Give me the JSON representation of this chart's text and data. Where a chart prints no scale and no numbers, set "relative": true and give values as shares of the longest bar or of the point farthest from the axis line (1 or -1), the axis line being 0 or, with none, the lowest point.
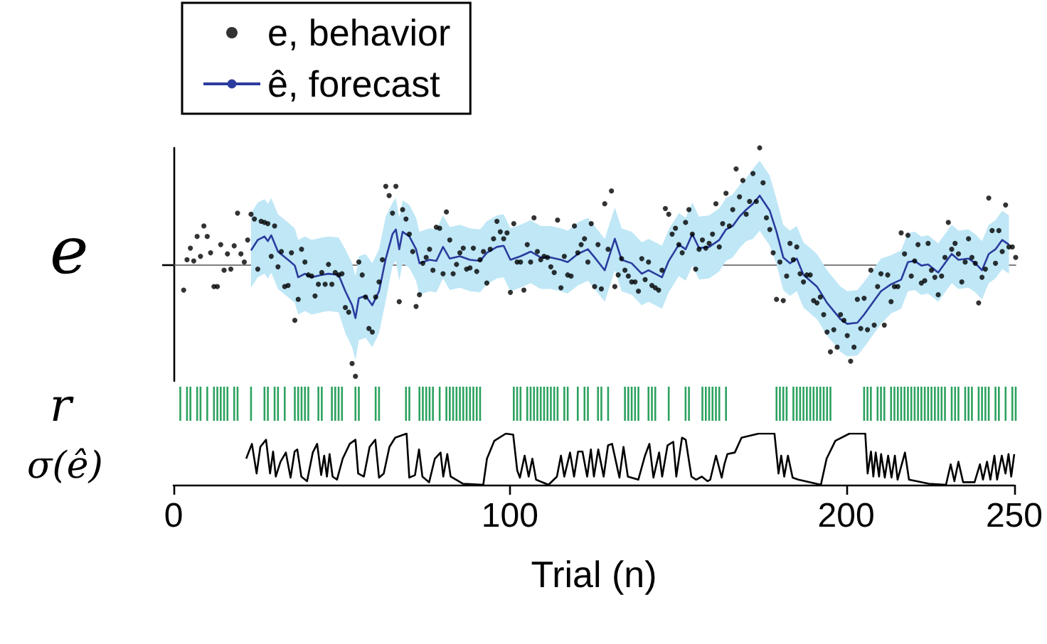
{
  "chart_data": [
    {
      "type": "line",
      "ylabel": "e",
      "relative": true,
      "xlim": [
        0,
        250
      ],
      "xticks": [
        0,
        100,
        200,
        250
      ],
      "tick_labels": false,
      "legend": "top left",
      "series": [
        {
          "type": "scatter",
          "name": "e, behavior",
          "color": "#000000",
          "marker": "circle",
          "x": [
            3,
            4,
            5,
            6,
            7,
            8,
            9,
            10,
            11,
            12,
            13,
            14,
            15,
            16,
            17,
            18,
            19,
            20,
            21,
            22,
            23,
            24,
            25,
            26,
            27,
            28,
            29,
            30,
            31,
            32,
            33,
            34,
            35,
            36,
            37,
            38,
            39,
            40,
            41,
            42,
            43,
            44,
            45,
            46,
            47,
            48,
            49,
            50,
            51,
            52,
            53,
            54,
            55,
            56,
            57,
            58,
            59,
            60,
            61,
            62,
            63,
            64,
            65,
            66,
            67,
            68,
            69,
            70,
            71,
            72,
            73,
            74,
            75,
            76,
            77,
            78,
            79,
            80,
            81,
            82,
            83,
            84,
            85,
            86,
            87,
            88,
            89,
            90,
            91,
            92,
            93,
            94,
            95,
            96,
            97,
            98,
            99,
            100,
            101,
            102,
            103,
            104,
            105,
            106,
            107,
            108,
            109,
            110,
            111,
            112,
            113,
            114,
            115,
            116,
            117,
            118,
            119,
            120,
            121,
            122,
            123,
            124,
            125,
            126,
            127,
            128,
            129,
            130,
            131,
            132,
            133,
            134,
            135,
            136,
            137,
            138,
            139,
            140,
            141,
            142,
            143,
            144,
            145,
            146,
            147,
            148,
            149,
            150,
            151,
            152,
            153,
            154,
            155,
            156,
            157,
            158,
            159,
            160,
            161,
            162,
            163,
            164,
            165,
            166,
            167,
            168,
            169,
            170,
            171,
            172,
            173,
            174,
            175,
            176,
            177,
            178,
            179,
            180,
            181,
            182,
            183,
            184,
            185,
            186,
            187,
            188,
            189,
            190,
            191,
            192,
            193,
            194,
            195,
            196,
            197,
            198,
            199,
            200,
            201,
            202,
            203,
            204,
            205,
            206,
            207,
            208,
            209,
            210,
            211,
            212,
            213,
            214,
            215,
            216,
            217,
            218,
            219,
            220,
            221,
            222,
            223,
            224,
            225,
            226,
            227,
            228,
            229,
            230,
            231,
            232,
            233,
            234,
            235,
            236,
            237,
            238,
            239,
            240,
            241,
            242,
            243,
            244,
            245,
            246,
            247,
            248,
            249,
            250
          ],
          "values": [
            -0.22,
            0.04,
            0.14,
            0.03,
            0.24,
            0.07,
            0.33,
            0.24,
            0.1,
            -0.19,
            -0.19,
            0.17,
            -0.05,
            0.09,
            -0.04,
            0.16,
            0.44,
            0.09,
            0.02,
            0.21,
            0.43,
            0.39,
            -0.04,
            0.37,
            0.36,
            0.35,
            0.07,
            0.33,
            -0.02,
            0.11,
            -0.19,
            -0.18,
            0.1,
            -0.48,
            -0.3,
            0.13,
            0.02,
            -0.09,
            -0.1,
            -0.27,
            -0.17,
            -0.07,
            -0.17,
            0.0,
            -0.17,
            -0.07,
            -0.09,
            -0.08,
            -0.37,
            -0.41,
            -0.85,
            -0.96,
            0.02,
            -0.09,
            -0.28,
            -0.55,
            -0.58,
            -0.28,
            -0.15,
            0.04,
            0.67,
            0.59,
            0.44,
            0.67,
            -0.32,
            0.47,
            0.39,
            0.26,
            0.11,
            -0.36,
            -0.26,
            0.01,
            0.06,
            0.13,
            -0.05,
            0.32,
            0.31,
            -0.08,
            0.45,
            0.21,
            -0.08,
            0.0,
            0.1,
            0.14,
            -0.04,
            -0.03,
            0.14,
            -0.06,
            0.04,
            0.11,
            -0.16,
            0.13,
            0.22,
            0.37,
            0.28,
            0.22,
            0.27,
            -0.24,
            0.35,
            0.02,
            0.02,
            -0.22,
            0.17,
            0.02,
            0.4,
            0.11,
            0.04,
            0.07,
            0.06,
            -0.02,
            -0.07,
            0.38,
            -0.2,
            0.07,
            -0.09,
            -0.1,
            0.33,
            0.1,
            0.17,
            0.22,
            0.02,
            0.35,
            -0.19,
            0.17,
            -0.21,
            0.52,
            0.13,
            0.63,
            -0.19,
            -0.09,
            0.05,
            -0.05,
            -0.1,
            -0.15,
            -0.15,
            -0.23,
            0.05,
            -0.13,
            0.02,
            -0.18,
            -0.2,
            -0.22,
            -0.05,
            0.48,
            0.43,
            0.26,
            0.31,
            0.17,
            0.1,
            0.36,
            0.47,
            0.26,
            -0.04,
            0.13,
            0.21,
            0.14,
            0.18,
            0.26,
            0.52,
            0.15,
            0.35,
            0.61,
            0.33,
            0.47,
            0.82,
            0.58,
            0.72,
            0.43,
            0.54,
            0.78,
            0.54,
            1.0,
            0.7,
            0.4,
            0.3,
            0.1,
            -0.3,
            0.02,
            -0.31,
            -0.1,
            0.18,
            0.04,
            0.15,
            -0.08,
            -0.15,
            -0.09,
            -0.09,
            -0.31,
            -0.33,
            -0.28,
            -0.43,
            -0.58,
            -0.75,
            -0.56,
            -0.71,
            -0.43,
            -0.48,
            -0.61,
            -0.83,
            -0.71,
            -0.3,
            -0.55,
            -0.29,
            -0.56,
            -0.05,
            -0.52,
            -0.19,
            -0.08,
            -0.52,
            -0.09,
            -0.32,
            -0.19,
            -0.19,
            0.27,
            0.09,
            0.25,
            -0.1,
            0.03,
            0.17,
            -0.16,
            -0.14,
            0.18,
            -0.05,
            -0.11,
            -0.26,
            -0.1,
            0.06,
            0.36,
            0.13,
            0.18,
            0.09,
            -0.15,
            0.02,
            0.22,
            0.06,
            0.01,
            -0.33,
            -0.11,
            -0.04,
            0.57,
            0.29,
            0.01,
            0.29,
            0.11,
            0.51,
            0.15,
            0.15,
            0.06
          ]
        },
        {
          "type": "line",
          "name": "ê, forecast",
          "color": "#2b3c9e",
          "x": [
            23,
            25,
            27,
            28,
            29,
            31,
            34,
            36,
            37,
            39,
            41,
            44,
            46,
            49,
            51,
            53,
            54,
            55,
            57,
            59,
            61,
            63,
            65,
            66,
            67,
            68,
            70,
            72,
            73,
            76,
            78,
            80,
            82,
            85,
            88,
            91,
            93,
            96,
            98,
            100,
            103,
            106,
            109,
            112,
            115,
            117,
            120,
            123,
            125,
            128,
            130,
            131,
            133,
            136,
            139,
            141,
            145,
            147,
            150,
            152,
            154,
            156,
            159,
            162,
            164,
            166,
            168,
            170,
            172,
            174,
            177,
            179,
            181,
            183,
            185,
            187,
            191,
            194,
            198,
            200,
            203,
            205,
            208,
            210,
            213,
            216,
            218,
            220,
            222,
            224,
            227,
            229,
            231,
            233,
            236,
            238,
            240,
            242,
            244,
            246,
            248
          ],
          "values": [
            0.12,
            0.21,
            0.24,
            0.2,
            0.25,
            0.11,
            0.04,
            -0.01,
            -0.11,
            -0.08,
            -0.11,
            -0.09,
            -0.08,
            -0.09,
            -0.23,
            -0.35,
            -0.46,
            -0.29,
            -0.27,
            -0.35,
            -0.23,
            0.05,
            0.26,
            0.3,
            0.13,
            0.28,
            0.24,
            0.13,
            0.01,
            0.04,
            0.03,
            0.15,
            0.05,
            0.07,
            0.04,
            0.03,
            0.1,
            0.15,
            0.16,
            0.04,
            0.07,
            0.11,
            0.06,
            0.06,
            0.04,
            0.02,
            0.09,
            0.13,
            0.06,
            -0.05,
            0.13,
            0.22,
            0.04,
            0.01,
            -0.08,
            -0.05,
            -0.11,
            0.03,
            0.17,
            0.13,
            0.26,
            0.14,
            0.15,
            0.21,
            0.3,
            0.33,
            0.41,
            0.47,
            0.52,
            0.59,
            0.46,
            0.28,
            0.06,
            0.01,
            0.05,
            -0.09,
            -0.19,
            -0.33,
            -0.47,
            -0.51,
            -0.5,
            -0.43,
            -0.31,
            -0.23,
            -0.17,
            -0.13,
            0.02,
            0.03,
            -0.01,
            0.0,
            -0.07,
            0.01,
            0.09,
            0.04,
            0.05,
            0.01,
            -0.05,
            0.09,
            0.13,
            0.21,
            0.17
          ],
          "lower": [
            -0.2,
            -0.11,
            -0.08,
            -0.12,
            -0.07,
            -0.21,
            -0.28,
            -0.33,
            -0.43,
            -0.4,
            -0.43,
            -0.41,
            -0.4,
            -0.41,
            -0.59,
            -0.71,
            -0.82,
            -0.65,
            -0.63,
            -0.71,
            -0.59,
            -0.31,
            -0.01,
            0.03,
            -0.14,
            0.01,
            -0.03,
            -0.14,
            -0.26,
            -0.23,
            -0.24,
            -0.12,
            -0.22,
            -0.2,
            -0.23,
            -0.24,
            -0.17,
            -0.12,
            -0.11,
            -0.23,
            -0.2,
            -0.16,
            -0.21,
            -0.21,
            -0.23,
            -0.25,
            -0.18,
            -0.14,
            -0.21,
            -0.32,
            -0.14,
            -0.05,
            -0.23,
            -0.26,
            -0.35,
            -0.32,
            -0.38,
            -0.24,
            -0.1,
            -0.14,
            -0.01,
            -0.13,
            -0.12,
            -0.06,
            0.03,
            0.06,
            0.14,
            0.2,
            0.22,
            0.29,
            0.16,
            0.0,
            -0.22,
            -0.27,
            -0.23,
            -0.37,
            -0.47,
            -0.61,
            -0.75,
            -0.79,
            -0.78,
            -0.71,
            -0.59,
            -0.51,
            -0.42,
            -0.38,
            -0.23,
            -0.22,
            -0.26,
            -0.25,
            -0.32,
            -0.24,
            -0.16,
            -0.21,
            -0.2,
            -0.24,
            -0.3,
            -0.16,
            -0.12,
            -0.04,
            -0.08
          ],
          "upper": [
            0.44,
            0.53,
            0.56,
            0.52,
            0.57,
            0.43,
            0.36,
            0.31,
            0.21,
            0.24,
            0.21,
            0.23,
            0.24,
            0.23,
            0.13,
            0.01,
            -0.1,
            0.07,
            0.09,
            0.01,
            0.13,
            0.41,
            0.53,
            0.57,
            0.4,
            0.55,
            0.51,
            0.4,
            0.28,
            0.31,
            0.3,
            0.42,
            0.32,
            0.34,
            0.31,
            0.3,
            0.37,
            0.42,
            0.43,
            0.31,
            0.34,
            0.38,
            0.33,
            0.33,
            0.31,
            0.29,
            0.36,
            0.4,
            0.33,
            0.22,
            0.4,
            0.49,
            0.31,
            0.28,
            0.19,
            0.22,
            0.16,
            0.3,
            0.44,
            0.4,
            0.53,
            0.41,
            0.42,
            0.48,
            0.57,
            0.6,
            0.68,
            0.74,
            0.82,
            0.89,
            0.76,
            0.56,
            0.34,
            0.29,
            0.33,
            0.19,
            0.09,
            -0.05,
            -0.19,
            -0.23,
            -0.22,
            -0.15,
            -0.03,
            0.05,
            0.08,
            0.12,
            0.27,
            0.28,
            0.24,
            0.25,
            0.18,
            0.26,
            0.34,
            0.29,
            0.3,
            0.26,
            0.2,
            0.34,
            0.38,
            0.46,
            0.42
          ]
        }
      ]
    },
    {
      "type": "bar",
      "ylabel": "r",
      "relative": true,
      "xlim": [
        0,
        250
      ],
      "xticks": [
        0,
        100,
        200,
        250
      ],
      "tick_labels": false,
      "color": "#2ca25f",
      "x": [
        2,
        4,
        5,
        7,
        8,
        10,
        12,
        13,
        14,
        15,
        16,
        18,
        19,
        23,
        27,
        28,
        30,
        31,
        33,
        36,
        37,
        38,
        39,
        40,
        43,
        44,
        47,
        48,
        49,
        50,
        54,
        55,
        60,
        61,
        69,
        70,
        73,
        74,
        75,
        76,
        77,
        79,
        81,
        82,
        83,
        84,
        85,
        86,
        87,
        88,
        89,
        90,
        91,
        101,
        102,
        103,
        105,
        106,
        107,
        108,
        109,
        110,
        111,
        112,
        113,
        114,
        116,
        117,
        120,
        122,
        123,
        126,
        127,
        129,
        134,
        135,
        136,
        137,
        138,
        141,
        142,
        143,
        147,
        152,
        153,
        157,
        158,
        159,
        160,
        161,
        162,
        164,
        179,
        180,
        181,
        182,
        184,
        185,
        186,
        187,
        188,
        189,
        190,
        191,
        192,
        193,
        194,
        195,
        205,
        206,
        207,
        209,
        210,
        211,
        213,
        214,
        215,
        216,
        217,
        218,
        219,
        220,
        221,
        222,
        223,
        224,
        225,
        226,
        227,
        228,
        229,
        231,
        232,
        233,
        235,
        236,
        237,
        239,
        240,
        241,
        242,
        244,
        245,
        247,
        249,
        250
      ],
      "values": [
        1,
        1,
        1,
        1,
        1,
        1,
        1,
        1,
        1,
        1,
        1,
        1,
        1,
        1,
        1,
        1,
        1,
        1,
        1,
        1,
        1,
        1,
        1,
        1,
        1,
        1,
        1,
        1,
        1,
        1,
        1,
        1,
        1,
        1,
        1,
        1,
        1,
        1,
        1,
        1,
        1,
        1,
        1,
        1,
        1,
        1,
        1,
        1,
        1,
        1,
        1,
        1,
        1,
        1,
        1,
        1,
        1,
        1,
        1,
        1,
        1,
        1,
        1,
        1,
        1,
        1,
        1,
        1,
        1,
        1,
        1,
        1,
        1,
        1,
        1,
        1,
        1,
        1,
        1,
        1,
        1,
        1,
        1,
        1,
        1,
        1,
        1,
        1,
        1,
        1,
        1,
        1,
        1,
        1,
        1,
        1,
        1,
        1,
        1,
        1,
        1,
        1,
        1,
        1,
        1,
        1,
        1,
        1,
        1,
        1,
        1,
        1,
        1,
        1,
        1,
        1,
        1,
        1,
        1,
        1,
        1,
        1,
        1,
        1,
        1,
        1,
        1,
        1,
        1,
        1,
        1,
        1,
        1,
        1,
        1,
        1,
        1,
        1,
        1,
        1,
        1,
        1,
        1,
        1,
        1,
        1
      ]
    },
    {
      "type": "line",
      "ylabel": "σ(ê)",
      "xlabel": "Trial (n)",
      "relative": true,
      "xlim": [
        0,
        250
      ],
      "xticks": [
        0,
        100,
        200,
        250
      ],
      "tick_labels": "x",
      "color": "#000000",
      "x": [
        21.6,
        23.3,
        24.7,
        25.8,
        27.5,
        28.7,
        29.6,
        30.4,
        31.8,
        33.4,
        34.8,
        36.0,
        36.8,
        38.0,
        39.7,
        41.4,
        42.7,
        43.9,
        44.8,
        45.6,
        46.4,
        47.3,
        48.6,
        50.3,
        52.4,
        54.1,
        54.9,
        56.6,
        58.3,
        60.0,
        61.1,
        62.5,
        64.2,
        65.9,
        69.3,
        70.1,
        71.8,
        73.0,
        74.0,
        76.0,
        77.7,
        79.4,
        80.2,
        81.4,
        82.4,
        86.1,
        92.1,
        93.2,
        95.4,
        98.8,
        101.0,
        102.2,
        103.0,
        104.4,
        105.6,
        106.7,
        107.8,
        111.5,
        114.0,
        115.2,
        116.2,
        117.9,
        119.1,
        120.3,
        121.6,
        123.0,
        124.1,
        125.0,
        126.3,
        127.9,
        129.2,
        130.4,
        132.6,
        133.8,
        135.1,
        138.2,
        140.2,
        141.5,
        142.7,
        144.4,
        145.3,
        146.9,
        148.6,
        149.5,
        151.2,
        152.3,
        154.0,
        155.4,
        157.1,
        158.8,
        159.6,
        161.3,
        163.0,
        163.8,
        164.7,
        166.9,
        168.9,
        174.0,
        178.7,
        179.9,
        180.7,
        181.6,
        182.7,
        184.1,
        185.8,
        192.5,
        194.2,
        196.8,
        201.0,
        205.7,
        206.4,
        207.4,
        208.1,
        208.8,
        209.8,
        210.4,
        211.5,
        212.5,
        213.5,
        214.5,
        215.3,
        217.5,
        218.7,
        224.6,
        229.7,
        231.1,
        232.2,
        233.4,
        234.8,
        238.2,
        239.8,
        240.7,
        241.9,
        242.9,
        244.1,
        244.9,
        246.3,
        247.4,
        248.3,
        249.1,
        250.0
      ],
      "values": [
        0.51,
        0.8,
        0.22,
        0.74,
        0.88,
        0.22,
        0.65,
        0.16,
        0.45,
        0.63,
        0.14,
        0.65,
        0.69,
        0.16,
        0.07,
        0.63,
        0.8,
        0.19,
        0.57,
        0.16,
        0.6,
        0.16,
        0.1,
        0.51,
        0.8,
        0.88,
        0.22,
        0.16,
        0.74,
        0.88,
        0.14,
        0.22,
        0.74,
        0.92,
        1.0,
        0.14,
        0.19,
        0.69,
        0.16,
        0.05,
        0.51,
        0.63,
        0.16,
        0.6,
        0.16,
        0.02,
        0,
        0.51,
        0.86,
        1.0,
        0.98,
        0.28,
        0.14,
        0.57,
        0.16,
        0.51,
        0.1,
        0,
        0.16,
        0.57,
        0.16,
        0.63,
        0.16,
        0.65,
        0.65,
        0.16,
        0.69,
        0.16,
        0.69,
        0.16,
        0.77,
        0.8,
        0.14,
        0.74,
        0.16,
        0.1,
        0.57,
        0.8,
        0.14,
        0.63,
        0.16,
        0.77,
        0.84,
        0.16,
        0.92,
        0.88,
        0.16,
        0.1,
        0.16,
        0.07,
        0.1,
        0.57,
        0.14,
        0.4,
        0.6,
        0.63,
        0.92,
        1.0,
        1.0,
        0.22,
        0.57,
        0.16,
        0.57,
        0.14,
        0.1,
        0,
        0.51,
        0.86,
        1.0,
        1.0,
        0.22,
        0.65,
        0.16,
        0.63,
        0.16,
        0.6,
        0.14,
        0.57,
        0.14,
        0.57,
        0.1,
        0.63,
        0.1,
        0.02,
        0,
        0.4,
        0.07,
        0.45,
        0.05,
        0.05,
        0.4,
        0.1,
        0.45,
        0.1,
        0.57,
        0.1,
        0.57,
        0.22,
        0.6,
        0.16,
        0.6
      ]
    }
  ]
}
